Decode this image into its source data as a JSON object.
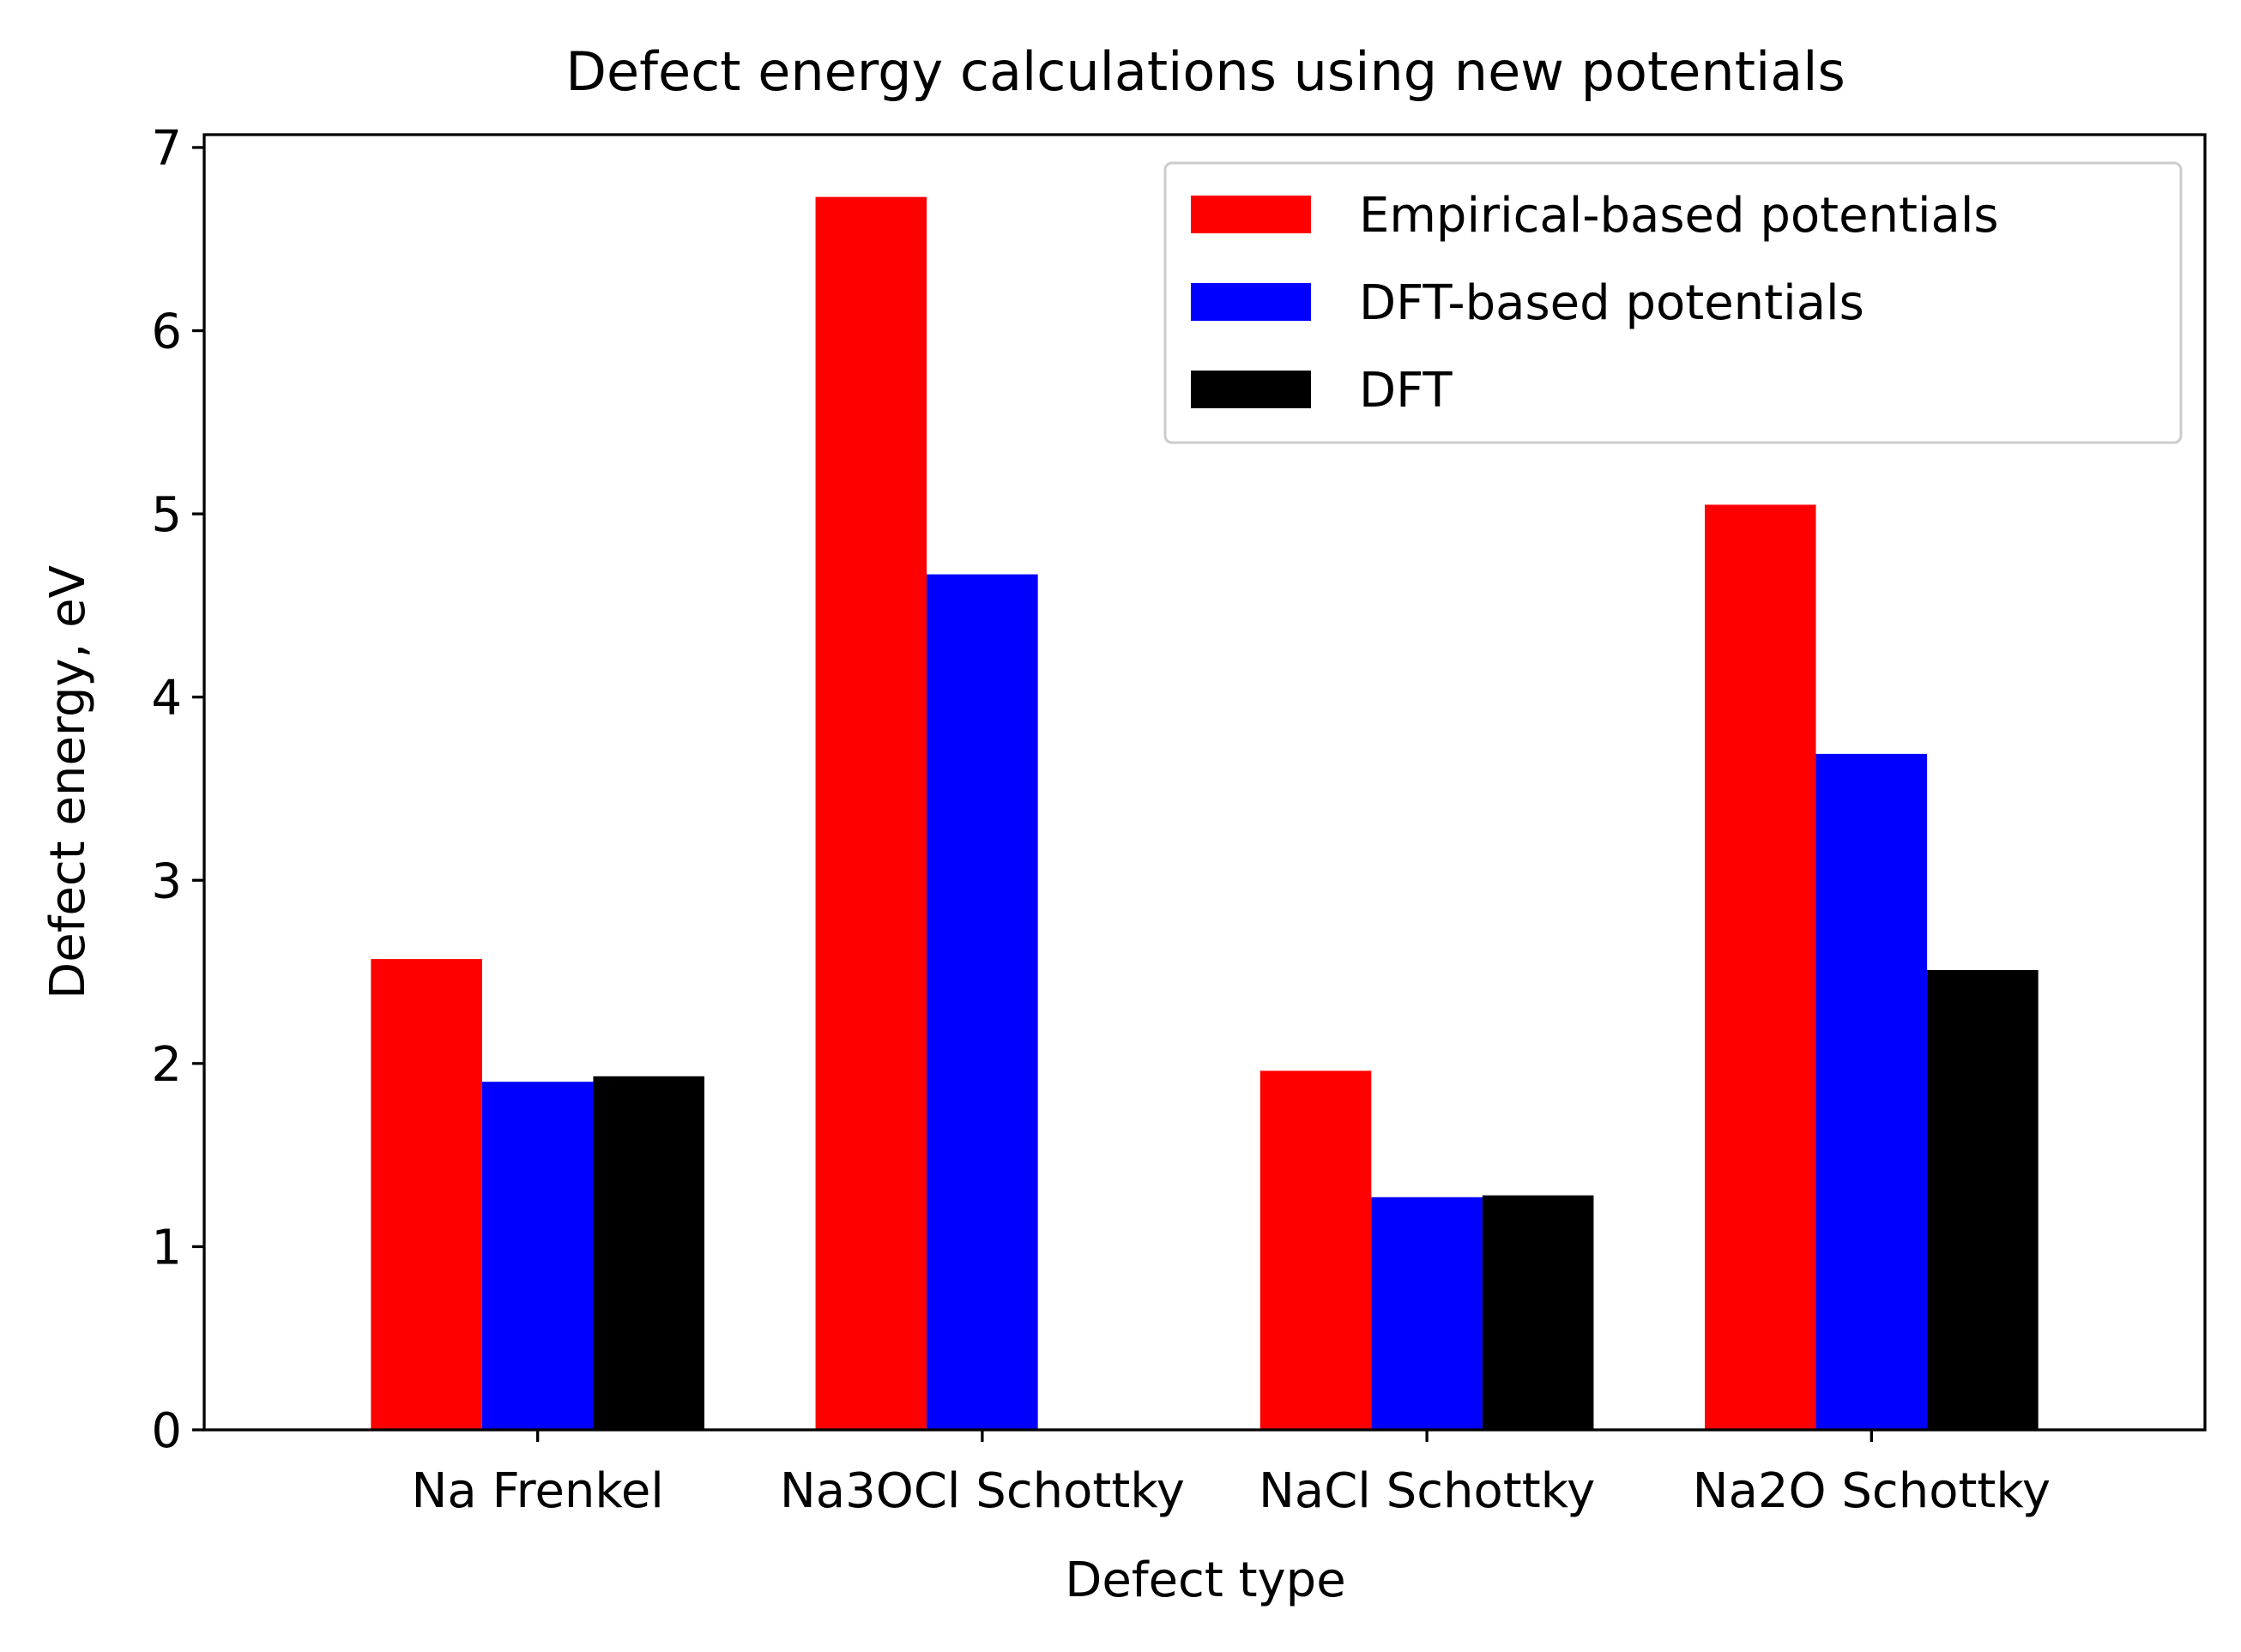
{
  "chart_data": {
    "type": "bar",
    "title": "Defect energy calculations using new potentials",
    "xlabel": "Defect type",
    "ylabel": "Defect energy, eV",
    "categories": [
      "Na Frenkel",
      "Na3OCl Schottky",
      "NaCl Schottky",
      "Na2O Schottky"
    ],
    "series": [
      {
        "name": "Empirical-based potentials",
        "color": "#ff0000",
        "values": [
          2.57,
          6.73,
          1.96,
          5.05
        ]
      },
      {
        "name": "DFT-based potentials",
        "color": "#0000ff",
        "values": [
          1.9,
          4.67,
          1.27,
          3.69
        ]
      },
      {
        "name": "DFT",
        "color": "#000000",
        "values": [
          1.93,
          null,
          1.28,
          2.51
        ]
      }
    ],
    "ylim": [
      0,
      7.07
    ],
    "yticks": [
      "0",
      "1",
      "2",
      "3",
      "4",
      "5",
      "6",
      "7"
    ],
    "grid": false,
    "legend_position": "top-right"
  }
}
